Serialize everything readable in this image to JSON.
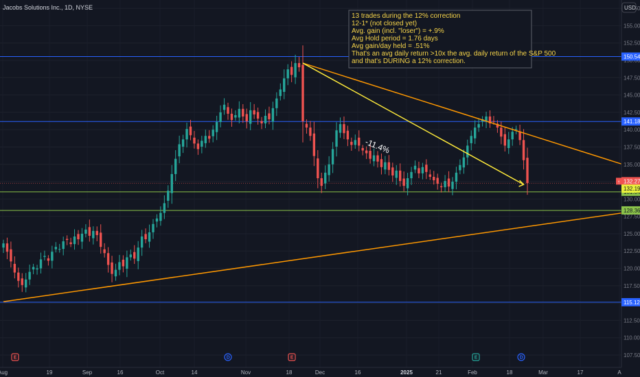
{
  "header": {
    "title": "Jacobs Solutions Inc., 1D, NYSE",
    "currency_button": "USD"
  },
  "note": {
    "lines": [
      "13 trades during the 12% correction",
      "12-1* (not closed yet)",
      "Avg. gain (incl. \"loser\") = +.9%",
      "Avg Hold period = 1.76 days",
      "Avg gain/day held =  .51%",
      "That's an avg daily return >10x the avg. daily return of the S&P 500",
      "and that's DURING a 12% correction."
    ]
  },
  "trend_label": "-11.4%",
  "colors": {
    "background": "#131722",
    "up": "#26a69a",
    "down": "#ef5350",
    "blue_line": "#2962ff",
    "green_line": "#8bc34a",
    "orange_line": "#ff9800",
    "yellow_line": "#ffeb3b",
    "note_text": "#f7d54a"
  },
  "chart_data": {
    "type": "candlestick",
    "title": "Jacobs Solutions Inc., 1D, NYSE",
    "y_axis": {
      "range": [
        107.5,
        158.5
      ],
      "ticks": [
        "157.50",
        "155.00",
        "152.50",
        "150.00",
        "147.50",
        "145.00",
        "142.50",
        "140.00",
        "137.50",
        "135.00",
        "132.50",
        "130.00",
        "127.50",
        "125.00",
        "122.50",
        "120.00",
        "117.50",
        "115.00",
        "112.50",
        "110.00",
        "107.50"
      ]
    },
    "x_axis": {
      "ticks": [
        {
          "label": "Aug",
          "bold": false
        },
        {
          "label": "19",
          "bold": false
        },
        {
          "label": "Sep",
          "bold": false
        },
        {
          "label": "16",
          "bold": false
        },
        {
          "label": "Oct",
          "bold": false
        },
        {
          "label": "14",
          "bold": false
        },
        {
          "label": "Nov",
          "bold": false
        },
        {
          "label": "18",
          "bold": false
        },
        {
          "label": "Dec",
          "bold": false
        },
        {
          "label": "16",
          "bold": false
        },
        {
          "label": "2025",
          "bold": true
        },
        {
          "label": "21",
          "bold": false
        },
        {
          "label": "Feb",
          "bold": false
        },
        {
          "label": "18",
          "bold": false
        },
        {
          "label": "Mar",
          "bold": false
        },
        {
          "label": "17",
          "bold": false
        },
        {
          "label": "A",
          "bold": false
        }
      ]
    },
    "series": [
      {
        "closes": [
          123.6,
          122.4,
          121.0,
          119.4,
          118.2,
          117.6,
          118.4,
          119.5,
          120.2,
          120.0,
          121.3,
          121.8,
          121.1,
          122.4,
          123.1,
          122.8,
          123.9,
          124.1,
          123.5,
          124.6,
          124.2,
          125.0,
          125.6,
          124.7,
          125.4,
          124.8,
          123.1,
          122.2,
          120.5,
          119.2,
          119.8,
          120.9,
          120.3,
          121.6,
          122.0,
          121.4,
          123.0,
          124.6,
          124.2,
          125.2,
          126.4,
          127.2,
          128.0,
          129.4,
          131.2,
          133.6,
          135.8,
          137.9,
          138.6,
          140.1,
          139.2,
          138.0,
          137.2,
          138.4,
          139.1,
          138.7,
          140.0,
          141.1,
          142.5,
          143.6,
          142.3,
          141.4,
          142.1,
          143.0,
          141.9,
          141.2,
          142.8,
          142.2,
          141.6,
          140.9,
          142.0,
          141.5,
          143.1,
          144.5,
          145.8,
          147.4,
          148.7,
          147.9,
          149.6,
          149.0,
          141.2,
          140.3,
          139.1,
          136.2,
          133.0,
          131.9,
          133.8,
          135.0,
          137.2,
          139.9,
          140.8,
          139.5,
          138.6,
          137.8,
          138.5,
          137.7,
          137.0,
          136.6,
          135.8,
          136.3,
          135.4,
          134.6,
          135.3,
          134.2,
          133.4,
          134.1,
          132.6,
          131.9,
          133.0,
          133.9,
          134.8,
          133.7,
          134.6,
          133.9,
          133.2,
          132.7,
          132.2,
          131.7,
          132.6,
          131.8,
          132.5,
          133.8,
          134.9,
          136.0,
          137.7,
          139.1,
          140.3,
          140.8,
          141.5,
          141.9,
          140.9,
          141.2,
          140.3,
          139.0,
          137.7,
          138.6,
          139.7,
          140.1,
          138.5,
          135.6,
          132.3
        ]
      }
    ],
    "horizontal_levels": [
      {
        "value": 150.54,
        "color": "blue",
        "label": "150.54"
      },
      {
        "value": 141.18,
        "color": "blue",
        "label": "141.18"
      },
      {
        "value": 131.04,
        "color": "green",
        "label": "131.04"
      },
      {
        "value": 128.36,
        "color": "green",
        "label": "128.36"
      },
      {
        "value": 115.12,
        "color": "blue",
        "label": "115.12"
      }
    ],
    "price_tags": [
      {
        "value": 132.27,
        "label": "132.27",
        "kind": "last_price"
      },
      {
        "value": 132.19,
        "label": "132.19",
        "kind": "level"
      }
    ],
    "trendlines": [
      {
        "color": "orange",
        "from": {
          "bar": 0,
          "value": 115.2
        },
        "to": {
          "bar": 168,
          "value": 128.2
        }
      },
      {
        "color": "orange",
        "from": {
          "bar": 80,
          "value": 149.6
        },
        "to": {
          "bar": 176,
          "value": 133.2
        }
      },
      {
        "color": "yellow",
        "from": {
          "bar": 80,
          "value": 149.6
        },
        "to": {
          "bar": 139,
          "value": 132.1
        }
      }
    ],
    "events": [
      {
        "letter": "E",
        "type": "earnings"
      },
      {
        "letter": "D",
        "type": "dividend"
      },
      {
        "letter": "E",
        "type": "earnings"
      },
      {
        "letter": "E",
        "type": "earnings"
      },
      {
        "letter": "D",
        "type": "dividend"
      }
    ]
  }
}
